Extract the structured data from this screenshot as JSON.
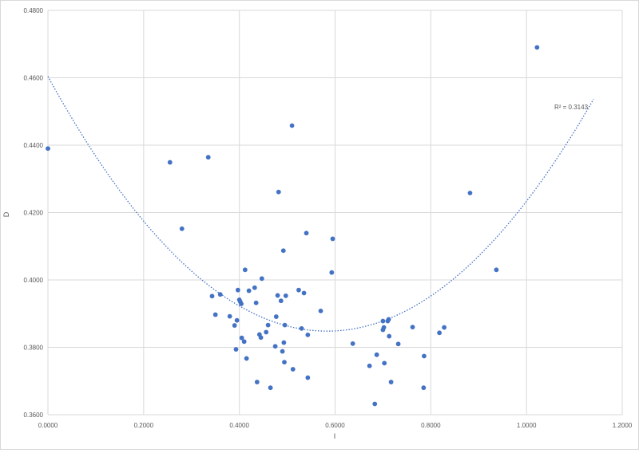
{
  "chart_data": {
    "type": "scatter",
    "title": "",
    "xlabel": "I",
    "ylabel": "D",
    "xlim": [
      0,
      1.2
    ],
    "ylim": [
      0.36,
      0.48
    ],
    "x_ticks": [
      "0.0000",
      "0.2000",
      "0.4000",
      "0.6000",
      "0.8000",
      "1.0000",
      "1.2000"
    ],
    "y_ticks": [
      "0.3600",
      "0.3800",
      "0.4000",
      "0.4200",
      "0.4400",
      "0.4600",
      "0.4800"
    ],
    "grid": true,
    "marker_color": "#4472C4",
    "trendline": {
      "type": "polynomial-2",
      "label": "R² = 0.3143",
      "color": "#4472C4",
      "x_range": [
        0,
        1.14
      ],
      "points": [
        [
          0.0,
          0.4627
        ],
        [
          0.3,
          0.3979
        ],
        [
          0.6,
          0.385
        ],
        [
          0.9,
          0.4124
        ],
        [
          1.14,
          0.4506
        ]
      ]
    },
    "points": [
      [
        0.0,
        0.439
      ],
      [
        0.255,
        0.4349
      ],
      [
        0.28,
        0.4152
      ],
      [
        0.335,
        0.4364
      ],
      [
        0.343,
        0.3952
      ],
      [
        0.35,
        0.3897
      ],
      [
        0.36,
        0.3957
      ],
      [
        0.38,
        0.3892
      ],
      [
        0.39,
        0.3865
      ],
      [
        0.393,
        0.3794
      ],
      [
        0.395,
        0.388
      ],
      [
        0.397,
        0.397
      ],
      [
        0.4,
        0.3941
      ],
      [
        0.402,
        0.3935
      ],
      [
        0.404,
        0.3929
      ],
      [
        0.405,
        0.3828
      ],
      [
        0.41,
        0.3817
      ],
      [
        0.412,
        0.403
      ],
      [
        0.415,
        0.3767
      ],
      [
        0.42,
        0.3968
      ],
      [
        0.432,
        0.3977
      ],
      [
        0.435,
        0.3932
      ],
      [
        0.437,
        0.3697
      ],
      [
        0.442,
        0.3838
      ],
      [
        0.445,
        0.3829
      ],
      [
        0.447,
        0.4004
      ],
      [
        0.456,
        0.3845
      ],
      [
        0.46,
        0.3866
      ],
      [
        0.465,
        0.368
      ],
      [
        0.475,
        0.3803
      ],
      [
        0.477,
        0.3891
      ],
      [
        0.48,
        0.3954
      ],
      [
        0.482,
        0.4261
      ],
      [
        0.487,
        0.3938
      ],
      [
        0.49,
        0.3788
      ],
      [
        0.492,
        0.4087
      ],
      [
        0.493,
        0.3814
      ],
      [
        0.494,
        0.3756
      ],
      [
        0.495,
        0.3866
      ],
      [
        0.497,
        0.3953
      ],
      [
        0.51,
        0.4458
      ],
      [
        0.512,
        0.3735
      ],
      [
        0.524,
        0.397
      ],
      [
        0.53,
        0.3856
      ],
      [
        0.535,
        0.3961
      ],
      [
        0.54,
        0.4139
      ],
      [
        0.543,
        0.3837
      ],
      [
        0.543,
        0.371
      ],
      [
        0.57,
        0.3908
      ],
      [
        0.593,
        0.4022
      ],
      [
        0.595,
        0.4122
      ],
      [
        0.637,
        0.3811
      ],
      [
        0.672,
        0.3745
      ],
      [
        0.683,
        0.3632
      ],
      [
        0.687,
        0.3778
      ],
      [
        0.7,
        0.3852
      ],
      [
        0.7,
        0.3878
      ],
      [
        0.702,
        0.3859
      ],
      [
        0.703,
        0.3753
      ],
      [
        0.71,
        0.3878
      ],
      [
        0.712,
        0.3883
      ],
      [
        0.713,
        0.3833
      ],
      [
        0.717,
        0.3697
      ],
      [
        0.732,
        0.381
      ],
      [
        0.762,
        0.386
      ],
      [
        0.785,
        0.368
      ],
      [
        0.786,
        0.3774
      ],
      [
        0.818,
        0.3843
      ],
      [
        0.828,
        0.3859
      ],
      [
        0.882,
        0.4258
      ],
      [
        0.937,
        0.403
      ],
      [
        1.022,
        0.469
      ]
    ]
  }
}
